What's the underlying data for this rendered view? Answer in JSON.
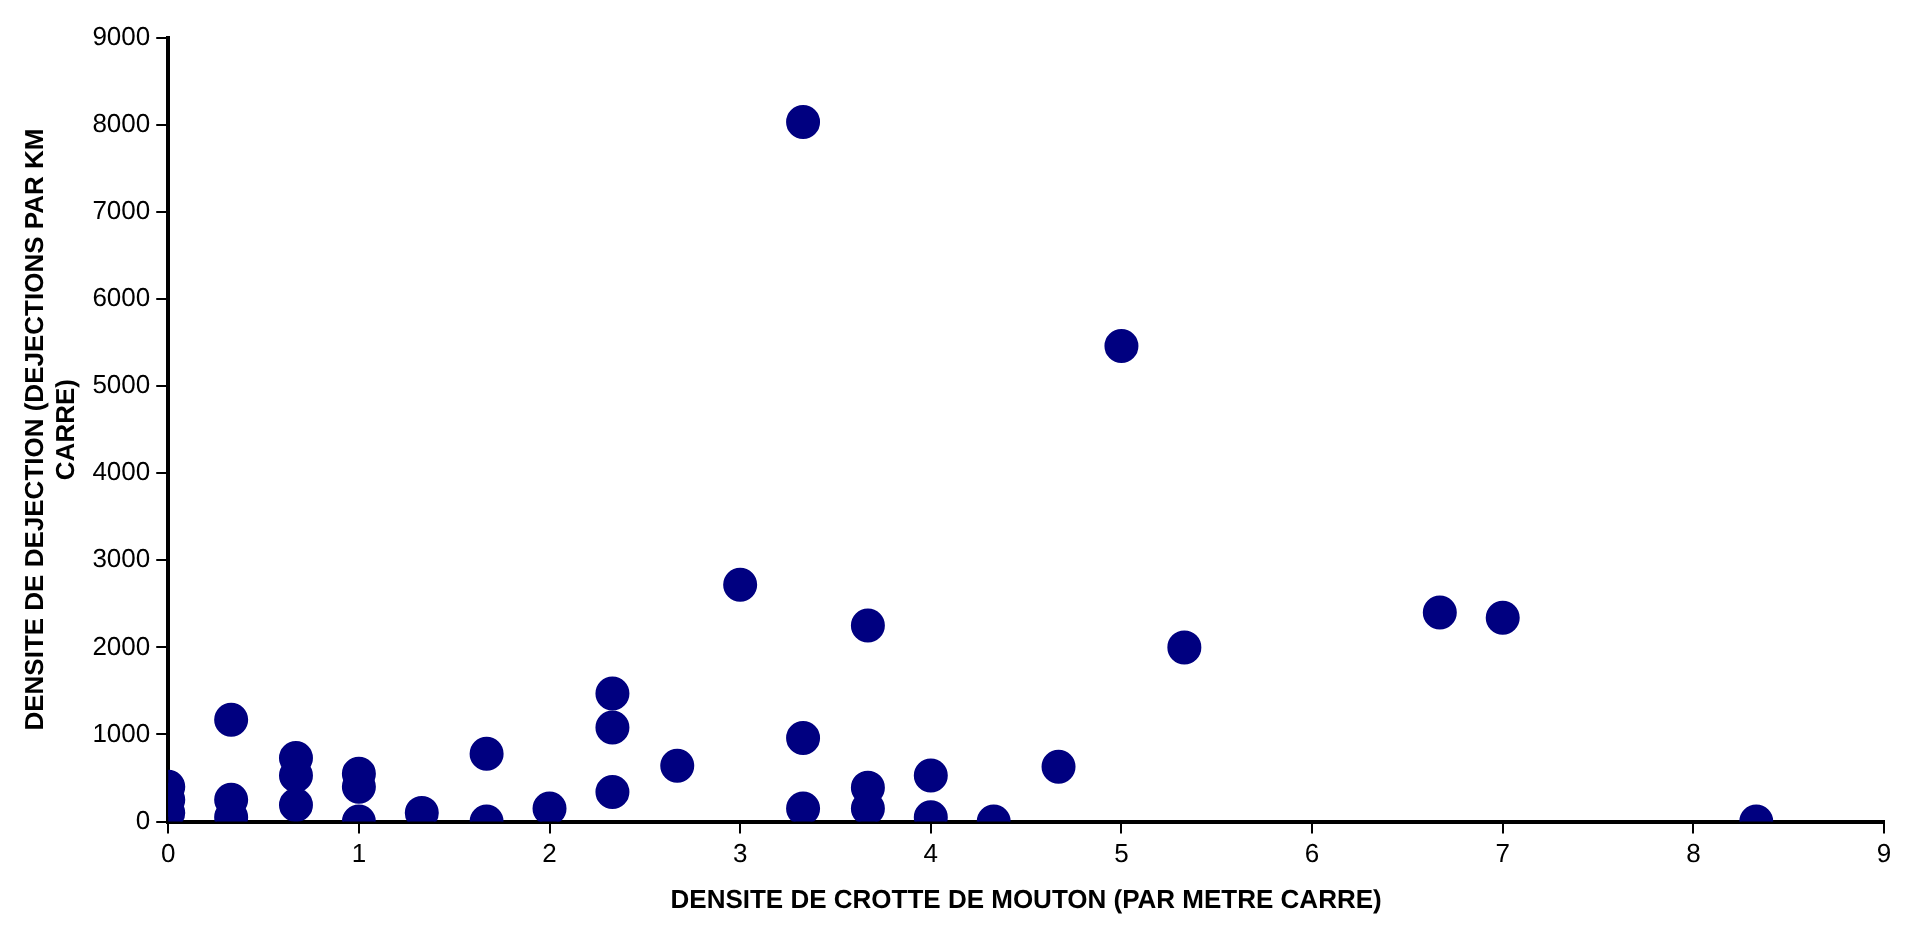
{
  "chart_data": {
    "type": "scatter",
    "xlabel": "DENSITE DE CROTTE DE MOUTON (PAR METRE CARRE)",
    "ylabel": "DENSITE DE DEJECTION (DEJECTIONS PAR KM CARRE)",
    "x": [
      0,
      0,
      0,
      0.33,
      0.33,
      0.33,
      0.67,
      0.67,
      0.67,
      1,
      1,
      1,
      1.33,
      1.67,
      1.67,
      2,
      2.33,
      2.33,
      2.33,
      2.67,
      3,
      3.33,
      3.33,
      3.33,
      3.67,
      3.67,
      3.67,
      4,
      4,
      4.33,
      4.67,
      5,
      5.33,
      6.67,
      7,
      8.33
    ],
    "series": [
      {
        "color": "#000080",
        "values": [
          400,
          250,
          100,
          1170,
          250,
          50,
          730,
          530,
          190,
          400,
          550,
          0,
          100,
          780,
          0,
          150,
          1470,
          1080,
          340,
          640,
          2720,
          8030,
          960,
          150,
          2250,
          390,
          150,
          530,
          50,
          0,
          630,
          5460,
          2000,
          2400,
          2340,
          0
        ]
      }
    ],
    "xlim": [
      0,
      9
    ],
    "xticks": [
      0,
      1,
      2,
      3,
      4,
      5,
      6,
      7,
      8,
      9
    ],
    "ylim": [
      0,
      9000
    ],
    "yticks": [
      0,
      1000,
      2000,
      3000,
      4000,
      5000,
      6000,
      7000,
      8000,
      9000
    ],
    "grid": false,
    "legend": false,
    "marker": "circle"
  }
}
